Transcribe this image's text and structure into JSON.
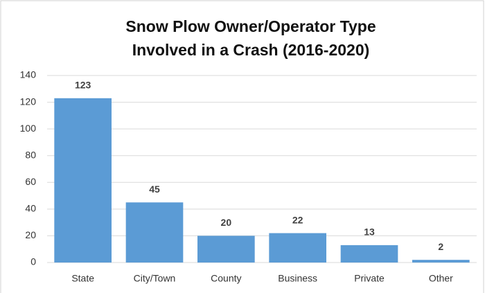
{
  "chart_data": {
    "type": "bar",
    "title": [
      "Snow Plow Owner/Operator Type",
      "Involved in a Crash (2016-2020)"
    ],
    "categories": [
      "State",
      "City/Town",
      "County",
      "Business",
      "Private",
      "Other"
    ],
    "values": [
      123,
      45,
      20,
      22,
      13,
      2
    ],
    "color": "#5b9bd5",
    "ylim": [
      0,
      140
    ],
    "yticks": [
      0,
      20,
      40,
      60,
      80,
      100,
      120,
      140
    ],
    "grid": true
  }
}
